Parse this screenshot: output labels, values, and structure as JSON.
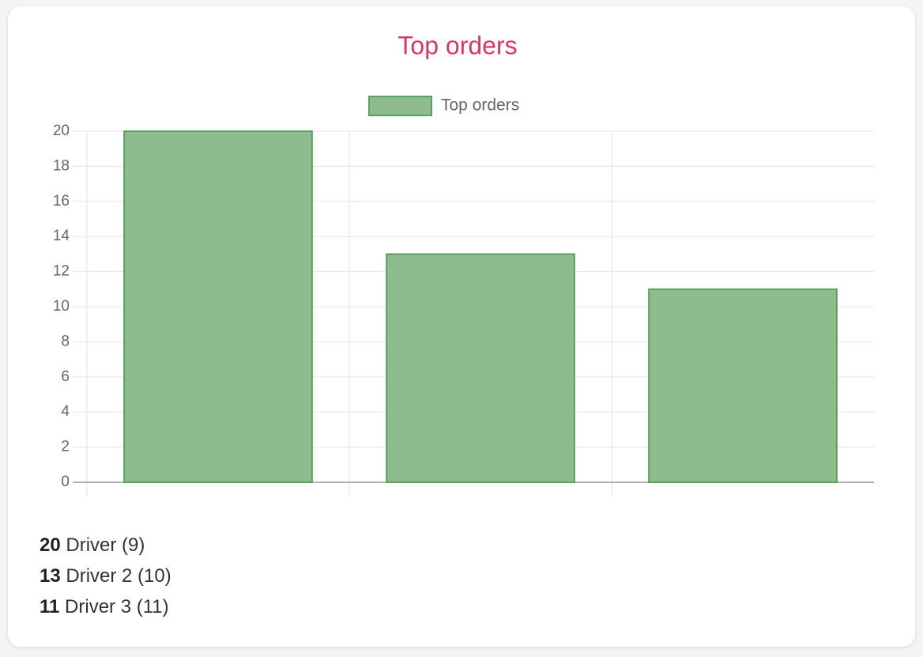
{
  "chart_data": {
    "type": "bar",
    "title": "Top orders",
    "categories": [
      null,
      null,
      null
    ],
    "series": [
      {
        "name": "Top orders",
        "color": "#8fbc8f",
        "border_color": "#5d9f5d",
        "values": [
          20,
          13,
          11
        ]
      }
    ],
    "ylim": [
      0,
      20
    ],
    "yticks": [
      0,
      2,
      4,
      6,
      8,
      10,
      12,
      14,
      16,
      18,
      20
    ],
    "grid": true,
    "legend": "top"
  },
  "list": [
    {
      "count": 20,
      "label": "Driver (9)"
    },
    {
      "count": 13,
      "label": "Driver 2 (10)"
    },
    {
      "count": 11,
      "label": "Driver 3 (11)"
    }
  ]
}
